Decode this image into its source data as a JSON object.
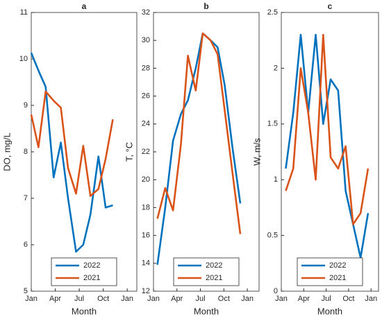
{
  "chart_data": [
    {
      "type": "line",
      "title": "a",
      "xlabel": "Month",
      "ylabel": "DO, mg/L",
      "xlim": [
        0,
        13.2
      ],
      "xticks": [
        {
          "value": 0,
          "label": "Jan"
        },
        {
          "value": 3,
          "label": "Apr"
        },
        {
          "value": 6,
          "label": "Jul"
        },
        {
          "value": 9,
          "label": "Oct"
        },
        {
          "value": 12,
          "label": "Jan"
        }
      ],
      "ylim": [
        5,
        11
      ],
      "yticks": [
        5,
        6,
        7,
        8,
        9,
        10,
        11
      ],
      "x": [
        0,
        0.9,
        1.8,
        2.8,
        3.7,
        4.6,
        5.6,
        6.5,
        7.4,
        8.4,
        9.3,
        10.2
      ],
      "legend": "lower center",
      "series": [
        {
          "name": "2022",
          "color": "#0072bd",
          "values": [
            10.13,
            9.75,
            9.4,
            7.45,
            8.2,
            7.0,
            5.85,
            6.0,
            6.65,
            7.9,
            6.8,
            6.85
          ]
        },
        {
          "name": "2021",
          "color": "#d95319",
          "values": [
            8.8,
            8.1,
            9.3,
            9.1,
            8.95,
            7.65,
            7.1,
            8.13,
            7.05,
            7.2,
            7.85,
            8.7
          ]
        }
      ]
    },
    {
      "type": "line",
      "title": "b",
      "xlabel": "Month",
      "ylabel": "T, °C",
      "xlim": [
        0,
        13.5
      ],
      "xticks": [
        {
          "value": 0,
          "label": "Jan"
        },
        {
          "value": 3,
          "label": "Apr"
        },
        {
          "value": 6,
          "label": "Jul"
        },
        {
          "value": 9,
          "label": "Oct"
        },
        {
          "value": 12,
          "label": "Jan"
        }
      ],
      "ylim": [
        12,
        32
      ],
      "yticks": [
        12,
        14,
        16,
        18,
        20,
        22,
        24,
        26,
        28,
        30,
        32
      ],
      "x": [
        0.5,
        1.5,
        2.5,
        3.5,
        4.4,
        5.4,
        6.3,
        7.3,
        8.2,
        9.1,
        10.1,
        11.1
      ],
      "legend": "lower center",
      "series": [
        {
          "name": "2022",
          "color": "#0072bd",
          "values": [
            13.9,
            18.0,
            22.8,
            24.7,
            25.7,
            28.0,
            30.5,
            30.0,
            29.5,
            26.8,
            22.3,
            18.3
          ]
        },
        {
          "name": "2021",
          "color": "#d95319",
          "values": [
            17.2,
            19.4,
            17.8,
            22.5,
            28.9,
            26.4,
            30.5,
            30.0,
            29.0,
            25.0,
            20.5,
            16.1
          ]
        }
      ]
    },
    {
      "type": "line",
      "title": "c",
      "xlabel": "Month",
      "ylabel": "W, m/s",
      "xlim": [
        0,
        13
      ],
      "xticks": [
        {
          "value": 0,
          "label": "Jan"
        },
        {
          "value": 3,
          "label": "Apr"
        },
        {
          "value": 6,
          "label": "Jul"
        },
        {
          "value": 9,
          "label": "Oct"
        },
        {
          "value": 12,
          "label": "Jan"
        }
      ],
      "ylim": [
        0,
        2.5
      ],
      "yticks": [
        0,
        0.5,
        1,
        1.5,
        2,
        2.5
      ],
      "x": [
        0.6,
        1.6,
        2.6,
        3.6,
        4.6,
        5.6,
        6.6,
        7.6,
        8.6,
        9.6,
        10.6,
        11.6
      ],
      "legend": "lower center",
      "series": [
        {
          "name": "2022",
          "color": "#0072bd",
          "values": [
            1.1,
            1.6,
            2.3,
            1.6,
            2.3,
            1.5,
            1.9,
            1.8,
            0.9,
            0.6,
            0.3,
            0.7
          ]
        },
        {
          "name": "2021",
          "color": "#d95319",
          "values": [
            0.9,
            1.1,
            2.0,
            1.6,
            1.0,
            2.3,
            1.2,
            1.1,
            1.3,
            0.6,
            0.7,
            1.1
          ]
        }
      ]
    }
  ]
}
